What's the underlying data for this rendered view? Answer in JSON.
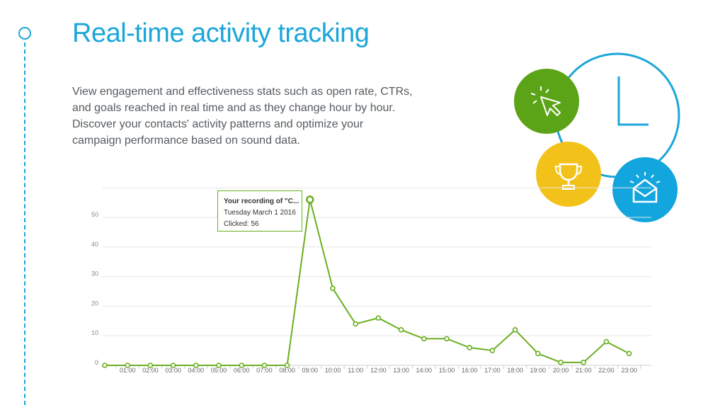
{
  "header": {
    "title": "Real-time activity tracking",
    "description_lines": [
      "View engagement and effectiveness stats such as open rate, CTRs,",
      "and goals reached in real time and as they change hour by hour.",
      "Discover your contacts' activity patterns and optimize your",
      "campaign performance based on sound data."
    ]
  },
  "tooltip": {
    "title": "Your recording of \"C...",
    "date": "Tuesday March 1 2016",
    "value_text": "Clicked: 56"
  },
  "colors": {
    "accent": "#1ba6d9",
    "line": "#6aaf1f",
    "green_badge": "#5ba317",
    "yellow_badge": "#f2c21b",
    "blue_badge": "#13a6de"
  },
  "icons": [
    "cursor-click-icon",
    "trophy-icon",
    "envelope-open-icon",
    "clock-icon"
  ],
  "chart_data": {
    "type": "line",
    "categories": [
      "",
      "01:00",
      "02:00",
      "03:00",
      "04:00",
      "05:00",
      "06:00",
      "07:00",
      "08:00",
      "09:00",
      "10:00",
      "11:00",
      "12:00",
      "13:00",
      "14:00",
      "15:00",
      "16:00",
      "17:00",
      "18:00",
      "19:00",
      "20:00",
      "21:00",
      "22:00",
      "23:00"
    ],
    "series": [
      {
        "values": [
          0,
          0,
          0,
          0,
          0,
          0,
          0,
          0,
          0,
          56,
          26,
          14,
          16,
          12,
          9,
          9,
          6,
          5,
          12,
          4,
          1,
          1,
          8,
          4
        ]
      }
    ],
    "yticks": [
      0,
      10,
      20,
      30,
      40,
      50
    ],
    "ylim": [
      0,
      60
    ],
    "grid": true,
    "highlighted_index": 9
  }
}
